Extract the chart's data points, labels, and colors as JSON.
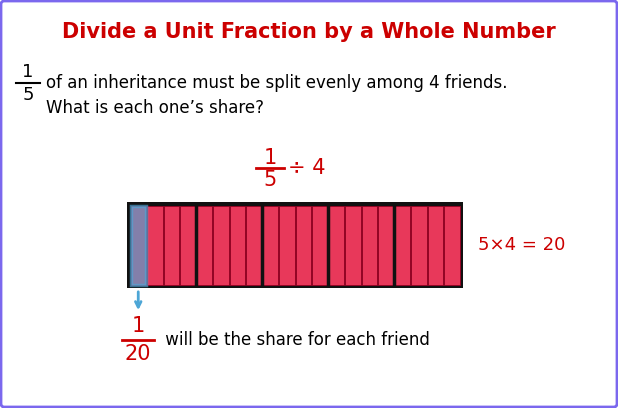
{
  "title": "Divide a Unit Fraction by a Whole Number",
  "title_color": "#cc0000",
  "title_fontsize": 15,
  "bg_color": "#ffffff",
  "border_color": "#7b68ee",
  "problem_text_color": "#000000",
  "red_color": "#cc0000",
  "pink_bar_color": "#e8385a",
  "blue_highlight_color": "#4da6d6",
  "dark_outline_color": "#111111",
  "num_total_cells": 20,
  "num_groups": 5,
  "equation_text": "5×4 = 20",
  "bottom_text": " will be the share for each friend"
}
